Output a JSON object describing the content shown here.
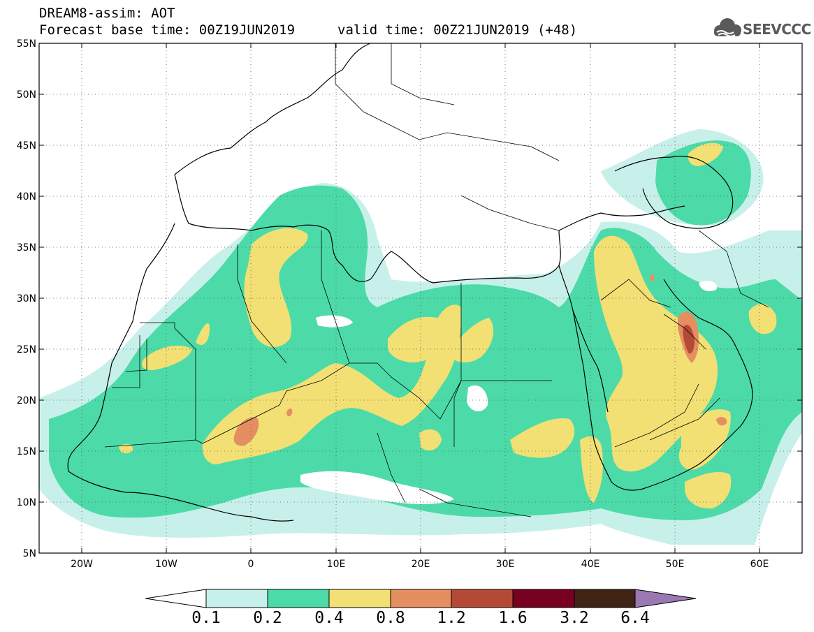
{
  "header": {
    "line1": "DREAM8-assim: AOT",
    "line2": "Forecast base time: 00Z19JUN2019",
    "line3": "valid time: 00Z21JUN2019 (+48)"
  },
  "logo": {
    "text": "SEEVCCC",
    "icon": "cloud-icon"
  },
  "map": {
    "lat_labels": [
      "55N",
      "50N",
      "45N",
      "40N",
      "35N",
      "30N",
      "25N",
      "20N",
      "15N",
      "10N",
      "5N"
    ],
    "lon_labels": [
      "20W",
      "10W",
      "0",
      "10E",
      "20E",
      "30E",
      "40E",
      "50E",
      "60E"
    ],
    "lat_range": [
      5,
      55
    ],
    "lon_range": [
      -25,
      65
    ],
    "grid": "dotted"
  },
  "colorbar": {
    "labels": [
      "0.1",
      "0.2",
      "0.4",
      "0.8",
      "1.2",
      "1.6",
      "3.2",
      "6.4"
    ],
    "colors": [
      "#ffffff",
      "#c8f0ea",
      "#4cdba8",
      "#f2e074",
      "#e58e62",
      "#b44a36",
      "#780020",
      "#402416",
      "#9a78b4"
    ]
  },
  "colors": {
    "level1": "#c8f0ea",
    "level2": "#4cdba8",
    "level3": "#f2e074",
    "level4": "#e58e62",
    "level5": "#b44a36"
  }
}
